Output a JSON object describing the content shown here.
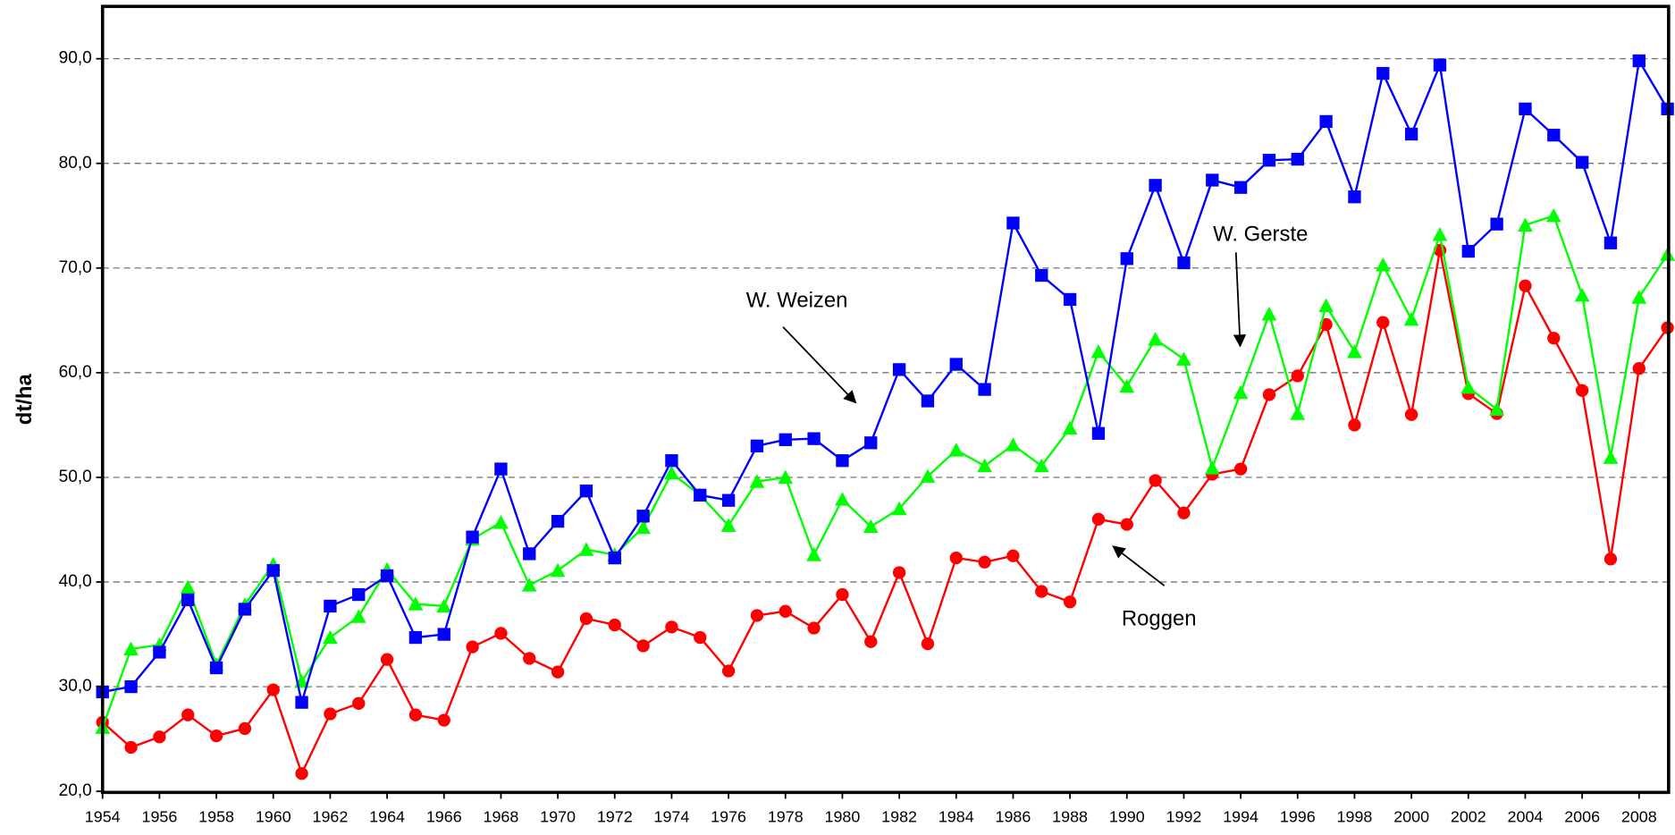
{
  "chart_data": {
    "type": "line",
    "ylabel": "dt/ha",
    "x": [
      1954,
      1955,
      1956,
      1957,
      1958,
      1959,
      1960,
      1961,
      1962,
      1963,
      1964,
      1965,
      1966,
      1967,
      1968,
      1969,
      1970,
      1971,
      1972,
      1973,
      1974,
      1975,
      1976,
      1977,
      1978,
      1979,
      1980,
      1981,
      1982,
      1983,
      1984,
      1985,
      1986,
      1987,
      1988,
      1989,
      1990,
      1991,
      1992,
      1993,
      1994,
      1995,
      1996,
      1997,
      1998,
      1999,
      2000,
      2001,
      2002,
      2003,
      2004,
      2005,
      2006,
      2007,
      2008,
      2009
    ],
    "xlim": [
      1954,
      2009
    ],
    "xticks": [
      1954,
      1956,
      1958,
      1960,
      1962,
      1964,
      1966,
      1968,
      1970,
      1972,
      1974,
      1976,
      1978,
      1980,
      1982,
      1984,
      1986,
      1988,
      1990,
      1992,
      1994,
      1996,
      1998,
      2000,
      2002,
      2004,
      2006,
      2008
    ],
    "ylim": [
      20,
      95
    ],
    "yticks": [
      {
        "value": 20,
        "label": "20,0"
      },
      {
        "value": 30,
        "label": "30,0"
      },
      {
        "value": 40,
        "label": "40,0"
      },
      {
        "value": 50,
        "label": "50,0"
      },
      {
        "value": 60,
        "label": "60,0"
      },
      {
        "value": 70,
        "label": "70,0"
      },
      {
        "value": 80,
        "label": "80,0"
      },
      {
        "value": 90,
        "label": "90,0"
      }
    ],
    "grid": true,
    "series": [
      {
        "name": "Roggen",
        "color": "#ff0000",
        "marker": "circle",
        "values": [
          26.6,
          24.2,
          25.2,
          27.3,
          25.3,
          26.0,
          29.7,
          21.7,
          27.4,
          28.4,
          32.6,
          27.3,
          26.8,
          33.8,
          35.1,
          32.7,
          31.4,
          36.5,
          35.9,
          33.9,
          35.7,
          34.7,
          31.5,
          36.8,
          37.2,
          35.6,
          38.8,
          34.3,
          40.9,
          34.1,
          42.3,
          41.9,
          42.5,
          39.1,
          38.1,
          46.0,
          45.5,
          49.7,
          46.6,
          50.3,
          50.8,
          57.9,
          59.7,
          64.6,
          55.0,
          64.8,
          56.0,
          71.7,
          58.0,
          56.1,
          68.3,
          63.3,
          58.3,
          42.2,
          60.4,
          64.3
        ]
      },
      {
        "name": "W. Gerste",
        "color": "#00ff00",
        "marker": "triangle",
        "values": [
          26.1,
          33.6,
          34.0,
          39.5,
          32.1,
          37.8,
          41.7,
          30.5,
          34.7,
          36.7,
          41.2,
          37.9,
          37.7,
          44.1,
          45.7,
          39.7,
          41.1,
          43.1,
          42.6,
          45.2,
          50.4,
          48.3,
          45.4,
          49.6,
          50.0,
          42.6,
          47.9,
          45.3,
          47.0,
          50.1,
          52.6,
          51.1,
          53.1,
          51.1,
          54.7,
          62.0,
          58.7,
          63.2,
          61.3,
          50.9,
          58.1,
          65.6,
          56.1,
          66.4,
          62.0,
          70.3,
          65.1,
          73.2,
          58.6,
          56.5,
          74.1,
          75.0,
          67.4,
          51.9,
          67.2,
          71.3
        ]
      },
      {
        "name": "W. Weizen",
        "color": "#0000ff",
        "marker": "square",
        "values": [
          29.5,
          30.0,
          33.3,
          38.3,
          31.8,
          37.4,
          41.1,
          28.5,
          37.7,
          38.8,
          40.6,
          34.7,
          35.0,
          44.3,
          50.8,
          42.7,
          45.8,
          48.7,
          42.3,
          46.3,
          51.6,
          48.3,
          47.8,
          53.0,
          53.6,
          53.7,
          51.6,
          53.3,
          60.3,
          57.3,
          60.8,
          58.4,
          74.3,
          69.3,
          67.0,
          54.2,
          70.9,
          77.9,
          70.5,
          78.4,
          77.7,
          80.3,
          80.4,
          84.0,
          76.8,
          88.6,
          82.8,
          89.4,
          71.6,
          74.2,
          85.2,
          82.7,
          80.1,
          72.4,
          89.8,
          85.2
        ]
      }
    ]
  }
}
